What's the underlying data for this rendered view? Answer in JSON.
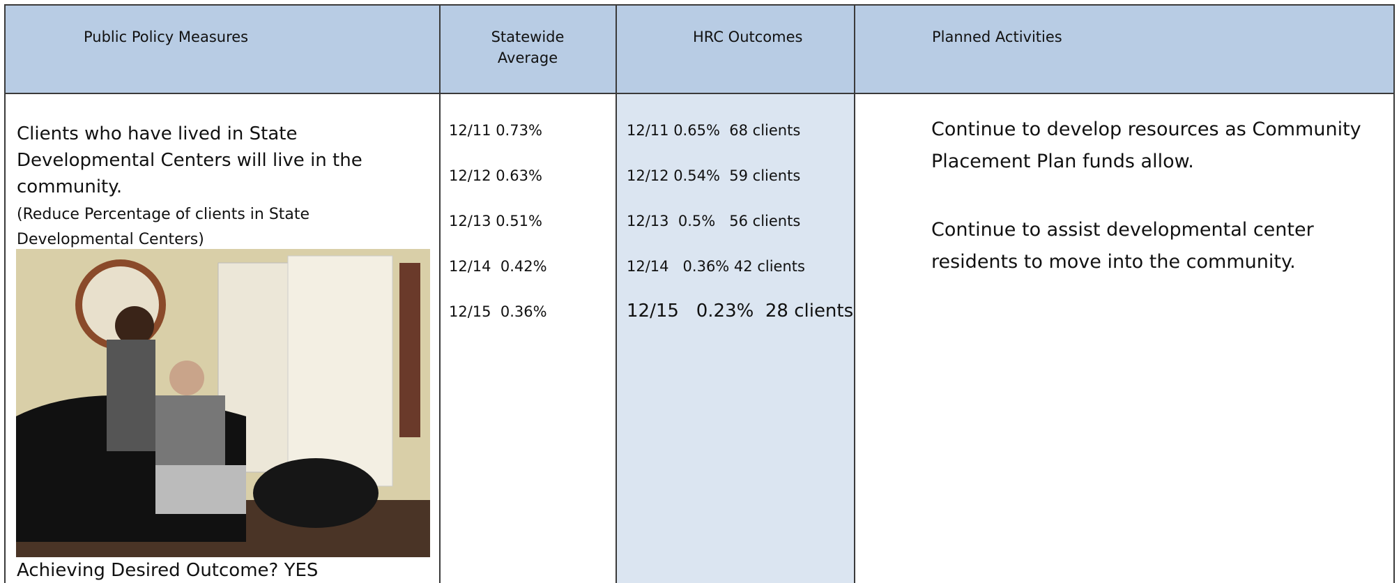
{
  "table": {
    "headers": [
      "Public Policy Measures",
      "Statewide Average",
      "HRC Outcomes",
      "Planned Activities"
    ],
    "measure": {
      "text": "Clients who have lived in State Developmental Centers will live in the community.",
      "note": "(Reduce Percentage of clients in State Developmental Centers)",
      "status": "Achieving Desired Outcome? YES"
    },
    "statewide": [
      "12/11 0.73%",
      "12/12 0.63%",
      "12/13 0.51%",
      "12/14  0.42%",
      "12/15  0.36%"
    ],
    "hrc": [
      "12/11 0.65%  68 clients",
      "12/12 0.54%  59 clients",
      "12/13  0.5%   56 clients",
      "12/14   0.36% 42 clients",
      "12/15   0.23%  28 clients"
    ],
    "activities": [
      "Continue to develop resources as Community Placement Plan funds allow.",
      "Continue to assist developmental center residents to move into the community."
    ]
  }
}
